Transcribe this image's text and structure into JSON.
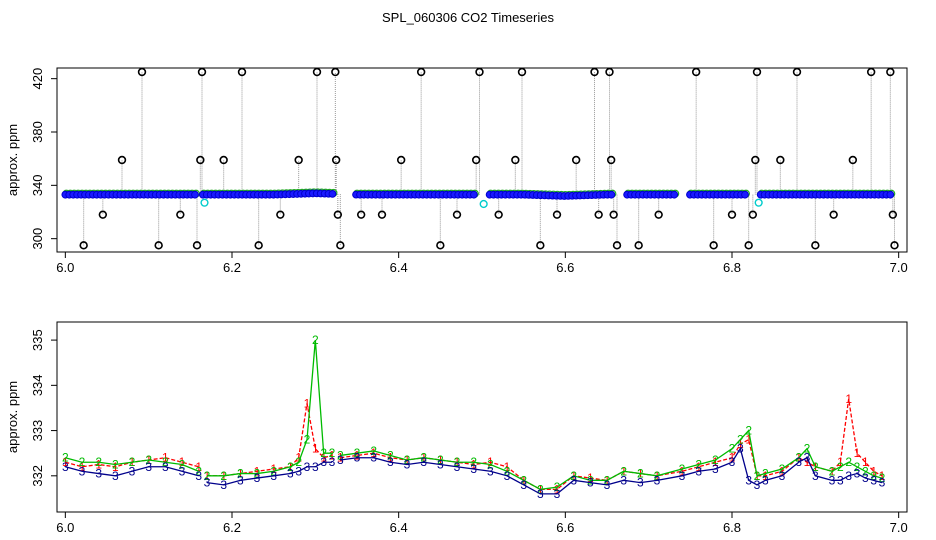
{
  "chart_data": [
    {
      "type": "scatter",
      "panel": "top",
      "title": "SPL_060306  CO2 Timeseries",
      "xlabel": "",
      "ylabel": "approx. ppm",
      "xlim": [
        5.99,
        7.01
      ],
      "ylim": [
        290,
        428
      ],
      "xticks": [
        "6.0",
        "6.2",
        "6.4",
        "6.6",
        "6.8",
        "7.0"
      ],
      "yticks": [
        "300",
        "340",
        "380",
        "420"
      ],
      "gaps": [
        [
          6.16,
          6.165
        ],
        [
          6.325,
          6.345
        ],
        [
          6.495,
          6.505
        ],
        [
          6.66,
          6.67
        ],
        [
          6.735,
          6.745
        ],
        [
          6.82,
          6.83
        ]
      ],
      "main_series": {
        "name": "CO2",
        "color": "#1a1aff",
        "points": [
          [
            6.0,
            333
          ],
          [
            6.05,
            333
          ],
          [
            6.1,
            333
          ],
          [
            6.15,
            333
          ],
          [
            6.2,
            333
          ],
          [
            6.25,
            333
          ],
          [
            6.3,
            334
          ],
          [
            6.35,
            333
          ],
          [
            6.4,
            333
          ],
          [
            6.45,
            333
          ],
          [
            6.5,
            333
          ],
          [
            6.55,
            333
          ],
          [
            6.6,
            332
          ],
          [
            6.65,
            333
          ],
          [
            6.7,
            333
          ],
          [
            6.75,
            333
          ],
          [
            6.8,
            333
          ],
          [
            6.85,
            333
          ],
          [
            6.9,
            333
          ],
          [
            6.95,
            333
          ],
          [
            6.99,
            333
          ]
        ]
      },
      "outliers": [
        {
          "x": 6.022,
          "y": 295
        },
        {
          "x": 6.045,
          "y": 318
        },
        {
          "x": 6.068,
          "y": 359
        },
        {
          "x": 6.092,
          "y": 425
        },
        {
          "x": 6.112,
          "y": 295
        },
        {
          "x": 6.138,
          "y": 318
        },
        {
          "x": 6.158,
          "y": 295
        },
        {
          "x": 6.162,
          "y": 359
        },
        {
          "x": 6.164,
          "y": 425
        },
        {
          "x": 6.19,
          "y": 359
        },
        {
          "x": 6.212,
          "y": 425
        },
        {
          "x": 6.232,
          "y": 295
        },
        {
          "x": 6.258,
          "y": 318
        },
        {
          "x": 6.28,
          "y": 359
        },
        {
          "x": 6.302,
          "y": 425
        },
        {
          "x": 6.324,
          "y": 425
        },
        {
          "x": 6.325,
          "y": 359
        },
        {
          "x": 6.327,
          "y": 318
        },
        {
          "x": 6.33,
          "y": 295
        },
        {
          "x": 6.355,
          "y": 318
        },
        {
          "x": 6.38,
          "y": 318
        },
        {
          "x": 6.403,
          "y": 359
        },
        {
          "x": 6.427,
          "y": 425
        },
        {
          "x": 6.45,
          "y": 295
        },
        {
          "x": 6.47,
          "y": 318
        },
        {
          "x": 6.493,
          "y": 359
        },
        {
          "x": 6.497,
          "y": 425
        },
        {
          "x": 6.52,
          "y": 318
        },
        {
          "x": 6.54,
          "y": 359
        },
        {
          "x": 6.548,
          "y": 425
        },
        {
          "x": 6.57,
          "y": 295
        },
        {
          "x": 6.59,
          "y": 318
        },
        {
          "x": 6.613,
          "y": 359
        },
        {
          "x": 6.635,
          "y": 425
        },
        {
          "x": 6.64,
          "y": 318
        },
        {
          "x": 6.653,
          "y": 425
        },
        {
          "x": 6.655,
          "y": 359
        },
        {
          "x": 6.658,
          "y": 318
        },
        {
          "x": 6.662,
          "y": 295
        },
        {
          "x": 6.688,
          "y": 295
        },
        {
          "x": 6.712,
          "y": 318
        },
        {
          "x": 6.757,
          "y": 425
        },
        {
          "x": 6.778,
          "y": 295
        },
        {
          "x": 6.8,
          "y": 318
        },
        {
          "x": 6.82,
          "y": 295
        },
        {
          "x": 6.825,
          "y": 318
        },
        {
          "x": 6.828,
          "y": 359
        },
        {
          "x": 6.83,
          "y": 425
        },
        {
          "x": 6.858,
          "y": 359
        },
        {
          "x": 6.878,
          "y": 425
        },
        {
          "x": 6.9,
          "y": 295
        },
        {
          "x": 6.922,
          "y": 318
        },
        {
          "x": 6.945,
          "y": 359
        },
        {
          "x": 6.967,
          "y": 425
        },
        {
          "x": 6.99,
          "y": 425
        },
        {
          "x": 6.993,
          "y": 318
        },
        {
          "x": 6.995,
          "y": 295
        }
      ],
      "cyan_points": [
        {
          "x": 6.167,
          "y": 327
        },
        {
          "x": 6.502,
          "y": 326
        },
        {
          "x": 6.832,
          "y": 327
        }
      ]
    },
    {
      "type": "line",
      "panel": "bottom",
      "title": "",
      "xlabel": "",
      "ylabel": "approx. ppm",
      "xlim": [
        5.99,
        7.01
      ],
      "ylim": [
        331.2,
        335.4
      ],
      "xticks": [
        "6.0",
        "6.2",
        "6.4",
        "6.6",
        "6.8",
        "7.0"
      ],
      "yticks": [
        "332",
        "333",
        "334",
        "335"
      ],
      "break_after": [
        6.16,
        6.32,
        6.655,
        6.735
      ],
      "x": [
        6.0,
        6.02,
        6.04,
        6.06,
        6.08,
        6.1,
        6.12,
        6.14,
        6.16,
        6.17,
        6.19,
        6.21,
        6.23,
        6.25,
        6.27,
        6.28,
        6.29,
        6.3,
        6.31,
        6.32,
        6.33,
        6.35,
        6.37,
        6.39,
        6.41,
        6.43,
        6.45,
        6.47,
        6.49,
        6.51,
        6.53,
        6.55,
        6.57,
        6.59,
        6.61,
        6.63,
        6.65,
        6.67,
        6.69,
        6.71,
        6.74,
        6.76,
        6.78,
        6.8,
        6.81,
        6.82,
        6.83,
        6.84,
        6.86,
        6.88,
        6.89,
        6.9,
        6.92,
        6.93,
        6.94,
        6.95,
        6.96,
        6.97,
        6.98
      ],
      "series": [
        {
          "name": "1",
          "color": "#ff0000",
          "marker": "1",
          "values": [
            332.3,
            332.2,
            332.25,
            332.2,
            332.3,
            332.35,
            332.4,
            332.3,
            332.2,
            332.0,
            332.0,
            332.05,
            332.1,
            332.15,
            332.2,
            332.4,
            333.6,
            332.6,
            332.4,
            332.45,
            332.4,
            332.45,
            332.5,
            332.4,
            332.35,
            332.4,
            332.35,
            332.3,
            332.25,
            332.3,
            332.2,
            331.9,
            331.7,
            331.7,
            332.0,
            331.95,
            331.9,
            332.1,
            332.05,
            332.0,
            332.1,
            332.2,
            332.3,
            332.4,
            332.7,
            332.8,
            332.0,
            332.0,
            332.1,
            332.4,
            332.3,
            332.2,
            332.1,
            332.3,
            333.7,
            332.5,
            332.3,
            332.1,
            332.0
          ]
        },
        {
          "name": "2",
          "color": "#00bb00",
          "marker": "2",
          "values": [
            332.4,
            332.3,
            332.3,
            332.25,
            332.3,
            332.35,
            332.3,
            332.25,
            332.1,
            332.0,
            332.0,
            332.05,
            332.05,
            332.1,
            332.2,
            332.3,
            332.8,
            335.0,
            332.5,
            332.5,
            332.45,
            332.5,
            332.55,
            332.45,
            332.35,
            332.4,
            332.35,
            332.3,
            332.3,
            332.25,
            332.1,
            331.9,
            331.7,
            331.75,
            332.0,
            331.9,
            331.9,
            332.1,
            332.05,
            332.0,
            332.15,
            332.25,
            332.35,
            332.6,
            332.8,
            333.0,
            332.0,
            332.05,
            332.15,
            332.4,
            332.6,
            332.2,
            332.1,
            332.2,
            332.3,
            332.2,
            332.1,
            332.0,
            331.95
          ]
        },
        {
          "name": "3",
          "color": "#00008b",
          "marker": "3",
          "values": [
            332.2,
            332.1,
            332.05,
            332.0,
            332.1,
            332.2,
            332.2,
            332.1,
            332.0,
            331.85,
            331.8,
            331.9,
            331.95,
            332.0,
            332.05,
            332.1,
            332.2,
            332.2,
            332.3,
            332.3,
            332.35,
            332.4,
            332.4,
            332.3,
            332.25,
            332.3,
            332.25,
            332.2,
            332.15,
            332.1,
            332.0,
            331.8,
            331.6,
            331.6,
            331.9,
            331.85,
            331.8,
            331.9,
            331.85,
            331.9,
            332.0,
            332.1,
            332.15,
            332.3,
            332.6,
            331.9,
            331.8,
            331.9,
            332.0,
            332.3,
            332.4,
            332.0,
            331.9,
            331.9,
            332.0,
            332.05,
            331.95,
            331.9,
            331.85
          ]
        }
      ]
    }
  ]
}
